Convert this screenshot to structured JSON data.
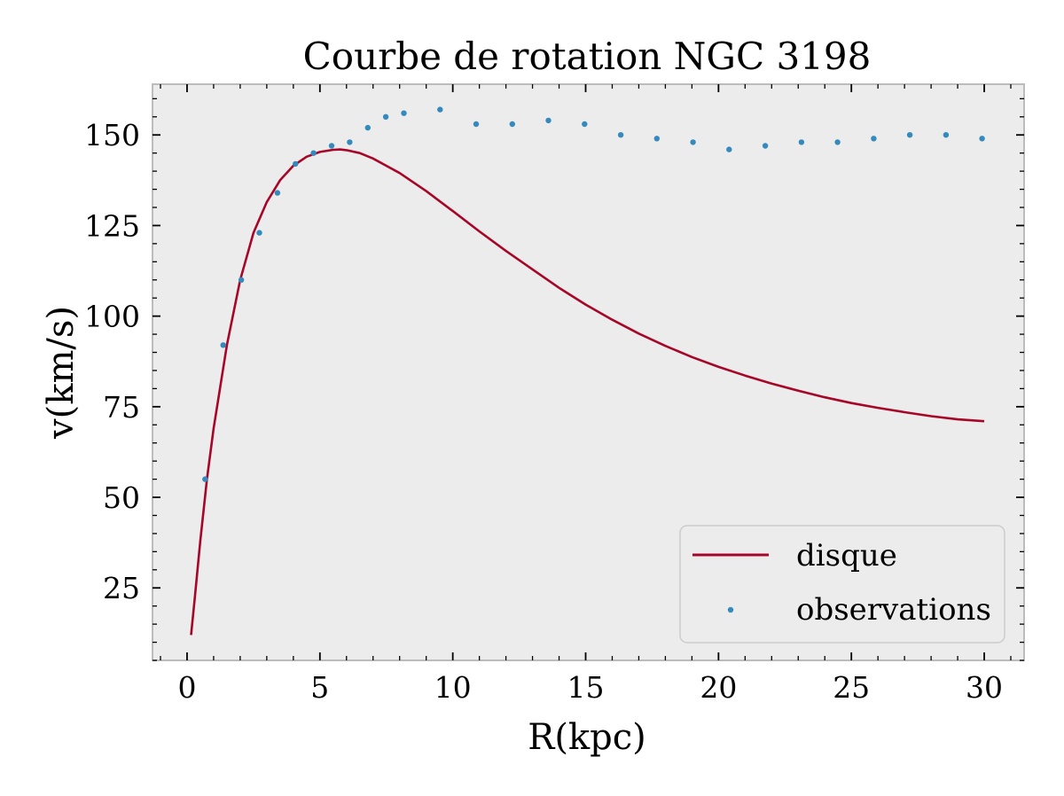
{
  "chart_data": {
    "type": "line",
    "title": "Courbe de rotation NGC 3198",
    "xlabel": "R(kpc)",
    "ylabel": "v(km/s)",
    "xlim": [
      -1.3,
      31.5
    ],
    "ylim": [
      5,
      164
    ],
    "xticks": [
      0,
      5,
      10,
      15,
      20,
      25,
      30
    ],
    "yticks": [
      25,
      50,
      75,
      100,
      125,
      150
    ],
    "x_minor_step": 1,
    "y_minor_step": 5,
    "grid": false,
    "background": "#ececec",
    "legend_position": "lower right",
    "series": [
      {
        "name": "disque",
        "kind": "line",
        "color": "#a60628",
        "x": [
          0.15,
          0.3,
          0.5,
          0.75,
          1.0,
          1.5,
          2.0,
          2.5,
          3.0,
          3.5,
          4.0,
          4.5,
          5.0,
          5.5,
          5.75,
          6.0,
          6.5,
          7.0,
          7.5,
          8.0,
          9.0,
          10.0,
          11.0,
          12.0,
          13.0,
          14.0,
          15.0,
          16.0,
          17.0,
          18.0,
          19.0,
          20.0,
          21.0,
          22.0,
          23.0,
          24.0,
          25.0,
          26.0,
          27.0,
          28.0,
          29.0,
          30.0
        ],
        "y": [
          12,
          23,
          38,
          55,
          69,
          92,
          110,
          123,
          131.5,
          137.5,
          141.5,
          144,
          145.3,
          145.9,
          146,
          145.8,
          145,
          143.5,
          141.5,
          139.5,
          134.5,
          129,
          123.4,
          118,
          112.9,
          107.8,
          103.2,
          99,
          95.2,
          91.8,
          88.7,
          86,
          83.6,
          81.4,
          79.4,
          77.6,
          76,
          74.7,
          73.5,
          72.4,
          71.5,
          71
        ]
      },
      {
        "name": "observations",
        "kind": "scatter",
        "color": "#348abd",
        "x": [
          0.68,
          1.36,
          2.04,
          2.72,
          3.4,
          4.08,
          4.76,
          5.44,
          6.12,
          6.8,
          7.48,
          8.16,
          9.52,
          10.88,
          12.24,
          13.6,
          14.96,
          16.32,
          17.68,
          19.04,
          20.4,
          21.76,
          23.12,
          24.48,
          25.84,
          27.2,
          28.56,
          29.92
        ],
        "y": [
          55,
          92,
          110,
          123,
          134,
          142,
          145,
          147,
          148,
          152,
          155,
          156,
          157,
          153,
          153,
          154,
          153,
          150,
          149,
          148,
          146,
          147,
          148,
          148,
          149,
          150,
          150,
          149
        ]
      }
    ]
  }
}
